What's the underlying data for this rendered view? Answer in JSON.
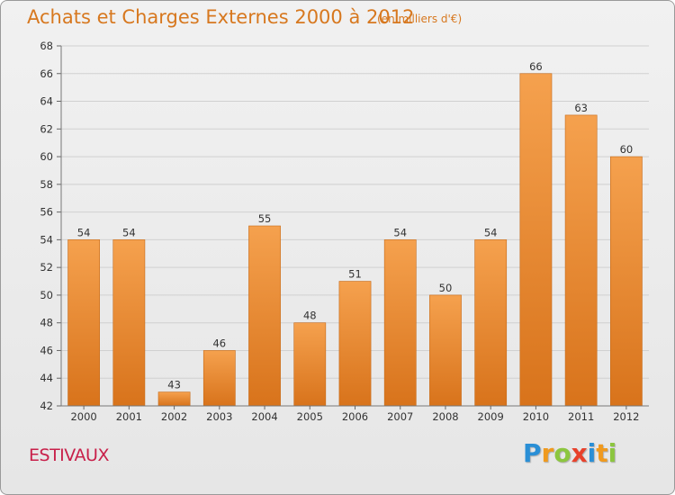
{
  "chart_data": {
    "type": "bar",
    "title": "Achats et Charges Externes 2000 à 2012",
    "subtitle": "(en milliers d'€)",
    "categories": [
      "2000",
      "2001",
      "2002",
      "2003",
      "2004",
      "2005",
      "2006",
      "2007",
      "2008",
      "2009",
      "2010",
      "2011",
      "2012"
    ],
    "values": [
      54,
      54,
      43,
      46,
      55,
      48,
      51,
      54,
      50,
      54,
      66,
      63,
      60
    ],
    "ylim": [
      42,
      68
    ],
    "yticks": [
      42,
      44,
      46,
      48,
      50,
      52,
      54,
      56,
      58,
      60,
      62,
      64,
      66,
      68
    ],
    "grid": true,
    "legend": "none",
    "bar_color_top": "#f5a14e",
    "bar_color_bottom": "#d8731b"
  },
  "footer": {
    "place": "ESTIVAUX",
    "place_color": "#c8204a",
    "logo_letters": [
      "P",
      "r",
      "o",
      "x",
      "i",
      "t",
      "i"
    ],
    "logo_colors": [
      "#2a8fd6",
      "#f09a1e",
      "#8cc63f",
      "#e8412b",
      "#2a8fd6",
      "#f09a1e",
      "#8cc63f"
    ]
  }
}
